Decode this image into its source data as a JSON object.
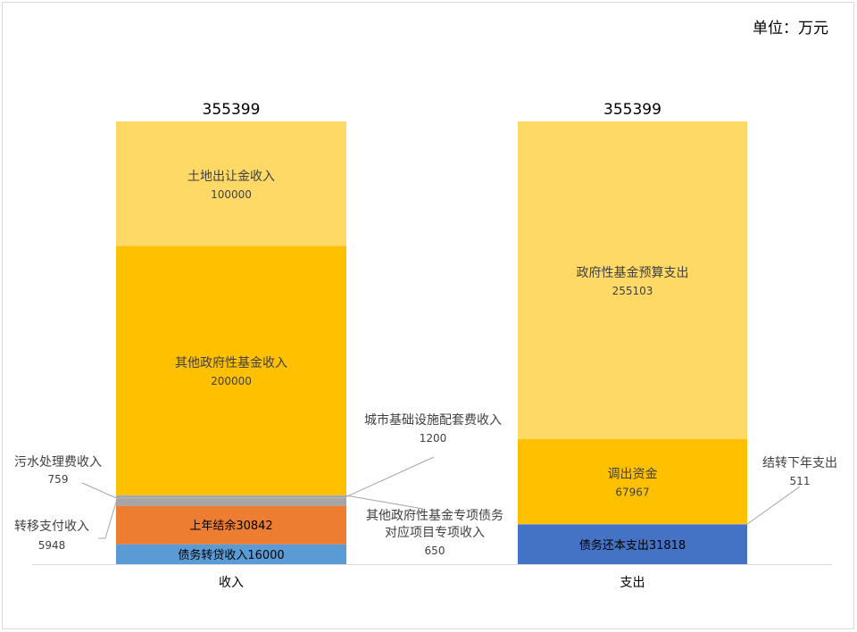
{
  "chart_data": {
    "type": "bar",
    "stacked": true,
    "unit_label": "单位：万元",
    "grid": false,
    "categories": [
      "收入",
      "支出"
    ],
    "totals": [
      355399,
      355399
    ],
    "ylim": [
      0,
      355399
    ],
    "series": [
      {
        "name": "债务转贷收入",
        "category": "收入",
        "value": 16000,
        "color": "#5b9bd5",
        "label": "债务转贷收入16000"
      },
      {
        "name": "上年结余",
        "category": "收入",
        "value": 30842,
        "color": "#ed7d31",
        "label": "上年结余30842"
      },
      {
        "name": "转移支付收入",
        "category": "收入",
        "value": 5948,
        "color": "#a5a5a5",
        "label": "转移支付收入",
        "value_label": "5948"
      },
      {
        "name": "污水处理费收入",
        "category": "收入",
        "value": 759,
        "color": "#a5a5a5",
        "label": "污水处理费收入",
        "value_label": "759"
      },
      {
        "name": "城市基础设施配套费收入",
        "category": "收入",
        "value": 1200,
        "color": "#a5a5a5",
        "label": "城市基础设施配套费收入",
        "value_label": "1200"
      },
      {
        "name": "其他政府性基金专项债务对应项目专项收入",
        "category": "收入",
        "value": 650,
        "color": "#a5a5a5",
        "label": "其他政府性基金专项债务",
        "label2": "对应项目专项收入",
        "value_label": "650"
      },
      {
        "name": "其他政府性基金收入",
        "category": "收入",
        "value": 200000,
        "color": "#ffc000",
        "label": "其他政府性基金收入",
        "value_label": "200000"
      },
      {
        "name": "土地出让金收入",
        "category": "收入",
        "value": 100000,
        "color": "#ffd966",
        "label": "土地出让金收入",
        "value_label": "100000"
      },
      {
        "name": "债务还本支出",
        "category": "支出",
        "value": 31818,
        "color": "#4472c4",
        "label": "债务还本支出31818"
      },
      {
        "name": "结转下年支出",
        "category": "支出",
        "value": 511,
        "color": "#a5a5a5",
        "label": "结转下年支出",
        "value_label": "511"
      },
      {
        "name": "调出资金",
        "category": "支出",
        "value": 67967,
        "color": "#ffc000",
        "label": "调出资金",
        "value_label": "67967"
      },
      {
        "name": "政府性基金预算支出",
        "category": "支出",
        "value": 255103,
        "color": "#ffd966",
        "label": "政府性基金预算支出",
        "value_label": "255103"
      }
    ]
  }
}
